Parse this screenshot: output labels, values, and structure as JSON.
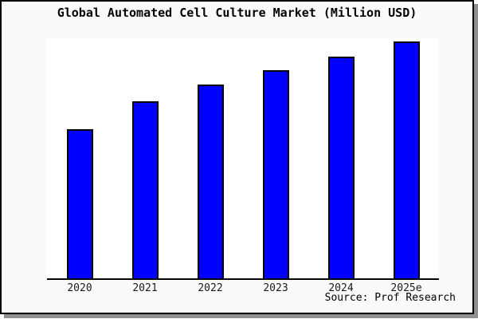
{
  "chart_data": {
    "type": "bar",
    "title": "Global Automated Cell Culture Market (Million USD)",
    "categories": [
      "2020",
      "2021",
      "2022",
      "2023",
      "2024",
      "2025e"
    ],
    "values": [
      189,
      225,
      246,
      264,
      282,
      301
    ],
    "values_note": "relative bar heights estimated from pixels; no y-axis scale, ticks or data labels are shown in the image",
    "xlabel": "",
    "ylabel": "",
    "ylim": [
      0,
      305
    ],
    "y_axis_visible": false,
    "grid": false,
    "legend": false,
    "source": "Source: Prof Research"
  },
  "colors": {
    "bar_fill": "#0000ff",
    "bar_border": "#000000",
    "plot_background": "#ffffff",
    "frame_background": "#fafafa",
    "frame_border": "#000000",
    "axis_line": "#000000",
    "shadow": "#8f8f8f",
    "text": "#000000"
  }
}
